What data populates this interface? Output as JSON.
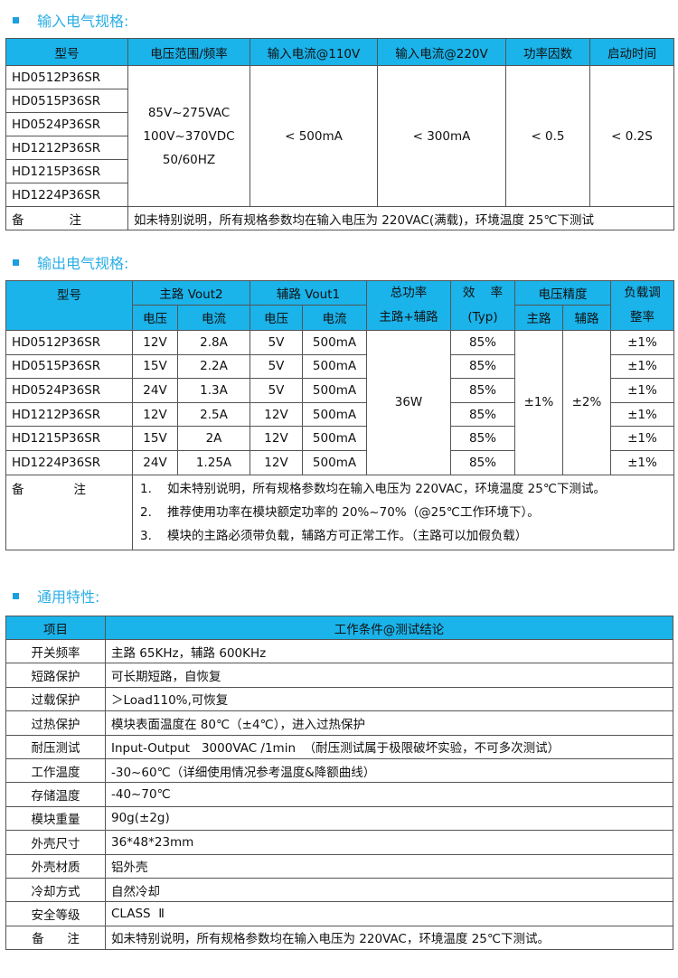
{
  "sections": {
    "input": "输入电气规格:",
    "output": "输出电气规格:",
    "general": "通用特性:"
  },
  "accent": "#1ab3ea",
  "input_table": {
    "headers": [
      "型号",
      "电压范围/频率",
      "输入电流@110V",
      "输入电流@220V",
      "功率因数",
      "启动时间"
    ],
    "models": [
      "HD0512P36SR",
      "HD0515P36SR",
      "HD0524P36SR",
      "HD1212P36SR",
      "HD1215P36SR",
      "HD1224P36SR"
    ],
    "voltage": [
      "85V~275VAC",
      "100V~370VDC",
      "50/60HZ"
    ],
    "current_110": "< 500mA",
    "current_220": "< 300mA",
    "pf": "< 0.5",
    "start": "< 0.2S",
    "note_label_1": "备",
    "note_label_2": "注",
    "note": "如未特别说明，所有规格参数均在输入电压为 220VAC(满载)，环境温度 25℃下测试"
  },
  "output_table": {
    "h_model": "型号",
    "h_main": "主路  Vout2",
    "h_aux": "辅路  Vout1",
    "h_power_1": "总功率",
    "h_power_2": "主路+辅路",
    "h_eff_1": "效    率",
    "h_eff_2": "(Typ)",
    "h_acc": "电压精度",
    "h_load_1": "负载调",
    "h_load_2": "整率",
    "h_v": "电压",
    "h_i": "电流",
    "h_acc_main": "主路",
    "h_acc_aux": "辅路",
    "rows": [
      [
        "HD0512P36SR",
        "12V",
        "2.8A",
        "5V",
        "500mA",
        "85%",
        "±1%"
      ],
      [
        "HD0515P36SR",
        "15V",
        "2.2A",
        "5V",
        "500mA",
        "85%",
        "±1%"
      ],
      [
        "HD0524P36SR",
        "24V",
        "1.3A",
        "5V",
        "500mA",
        "85%",
        "±1%"
      ],
      [
        "HD1212P36SR",
        "12V",
        "2.5A",
        "12V",
        "500mA",
        "85%",
        "±1%"
      ],
      [
        "HD1215P36SR",
        "15V",
        "2A",
        "12V",
        "500mA",
        "85%",
        "±1%"
      ],
      [
        "HD1224P36SR",
        "24V",
        "1.25A",
        "12V",
        "500mA",
        "85%",
        "±1%"
      ]
    ],
    "total_power": "36W",
    "acc_main": "±1%",
    "acc_aux": "±2%",
    "note_label_1": "备",
    "note_label_2": "注",
    "notes": [
      {
        "n": "1.",
        "t": "如未特别说明，所有规格参数均在输入电压为 220VAC，环境温度 25℃下测试。"
      },
      {
        "n": "2.",
        "t": "推荐使用功率在模块额定功率的 20%~70%（@25℃工作环境下）。"
      },
      {
        "n": "3.",
        "t": "模块的主路必须带负载，辅路方可正常工作。（主路可以加假负载）"
      }
    ]
  },
  "general_table": {
    "headers": [
      "项目",
      "工作条件@测试结论"
    ],
    "rows": [
      [
        "开关频率",
        "主路 65KHz，辅路 600KHz"
      ],
      [
        "短路保护",
        "可长期短路，自恢复"
      ],
      [
        "过载保护",
        "＞Load110%,可恢复"
      ],
      [
        "过热保护",
        "模块表面温度在 80℃（±4℃），进入过热保护"
      ],
      [
        "耐压测试",
        "Input-Output   3000VAC /1min  （耐压测试属于极限破坏实验，不可多次测试）"
      ],
      [
        "工作温度",
        "-30~60℃（详细使用情况参考温度&降额曲线）"
      ],
      [
        "存储温度",
        "-40~70℃"
      ],
      [
        "模块重量",
        "90g(±2g)"
      ],
      [
        "外壳尺寸",
        "36*48*23mm"
      ],
      [
        "外壳材质",
        "铝外壳"
      ],
      [
        "冷却方式",
        "自然冷却"
      ],
      [
        "安全等级",
        "CLASS  Ⅱ"
      ],
      [
        "备      注",
        "如未特别说明，所有规格参数均在输入电压为 220VAC，环境温度 25℃下测试。"
      ]
    ]
  }
}
